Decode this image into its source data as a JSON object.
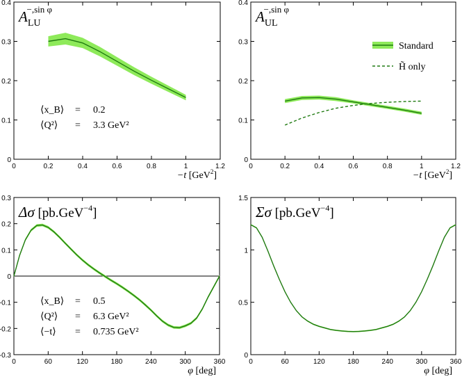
{
  "colors": {
    "band": "#8eea5a",
    "line": "#1f7a10",
    "axis": "#000000"
  },
  "chart_data": [
    {
      "type": "line",
      "panel": "top-left",
      "title": "A_LU^{-, sin φ}",
      "title_main": "A",
      "title_sub": "LU",
      "title_sup": "−,sin φ",
      "xlabel": "−t   [GeV²]",
      "xlabel_var": "−t",
      "xlabel_unit": "[GeV",
      "xlabel_unit_sup": "2",
      "xlim": [
        0,
        1.2
      ],
      "ylim": [
        0,
        0.4
      ],
      "xticks": [
        "0",
        "0.2",
        "0.4",
        "0.6",
        "0.8",
        "1",
        "1.2"
      ],
      "yticks": [
        "0",
        "0.1",
        "0.2",
        "0.3",
        "0.4"
      ],
      "series": [
        {
          "style": "solid-band",
          "x": [
            0.2,
            0.3,
            0.4,
            0.5,
            0.6,
            0.7,
            0.8,
            0.9,
            1.0
          ],
          "values": [
            0.3,
            0.307,
            0.296,
            0.274,
            0.249,
            0.224,
            0.201,
            0.179,
            0.157
          ],
          "band_halfwidth": [
            0.013,
            0.015,
            0.013,
            0.012,
            0.011,
            0.01,
            0.009,
            0.008,
            0.007
          ]
        }
      ],
      "annotations": [
        {
          "label": "⟨x_B⟩",
          "eq": "=",
          "value": "0.2"
        },
        {
          "label": "⟨Q²⟩",
          "eq": "=",
          "value": "3.3 GeV²"
        }
      ]
    },
    {
      "type": "line",
      "panel": "top-right",
      "title_main": "A",
      "title_sub": "UL",
      "title_sup": "−,sin φ",
      "xlabel_var": "−t",
      "xlabel_unit": "[GeV",
      "xlabel_unit_sup": "2",
      "xlim": [
        0,
        1.2
      ],
      "ylim": [
        0,
        0.4
      ],
      "xticks": [
        "0",
        "0.2",
        "0.4",
        "0.6",
        "0.8",
        "1",
        "1.2"
      ],
      "yticks": [
        "0",
        "0.1",
        "0.2",
        "0.3",
        "0.4"
      ],
      "legend": {
        "placement": "top-right",
        "entries": [
          "Standard",
          "H̃ only"
        ]
      },
      "series": [
        {
          "name": "Standard",
          "style": "solid-band",
          "x": [
            0.2,
            0.3,
            0.4,
            0.5,
            0.6,
            0.7,
            0.8,
            0.9,
            1.0
          ],
          "values": [
            0.148,
            0.156,
            0.157,
            0.153,
            0.146,
            0.139,
            0.132,
            0.125,
            0.117
          ],
          "band_halfwidth": [
            0.005,
            0.005,
            0.005,
            0.005,
            0.004,
            0.004,
            0.004,
            0.004,
            0.004
          ]
        },
        {
          "name": "H̃ only",
          "style": "dashed",
          "x": [
            0.2,
            0.3,
            0.4,
            0.5,
            0.6,
            0.7,
            0.8,
            0.9,
            1.0
          ],
          "values": [
            0.087,
            0.105,
            0.119,
            0.13,
            0.137,
            0.142,
            0.145,
            0.147,
            0.148
          ]
        }
      ]
    },
    {
      "type": "line",
      "panel": "bottom-left",
      "title_main": "Δσ",
      "title_unit": "[pb.GeV",
      "title_unit_sup": "−4",
      "xlabel_var": "φ",
      "xlabel_unit": "[deg]",
      "xlim": [
        0,
        360
      ],
      "ylim": [
        -0.3,
        0.3
      ],
      "xticks": [
        "0",
        "60",
        "120",
        "180",
        "240",
        "300",
        "360"
      ],
      "yticks": [
        "-0.3",
        "-0.2",
        "-0.1",
        "0",
        "0.1",
        "0.2",
        "0.3"
      ],
      "zero_line": true,
      "series": [
        {
          "style": "solid-band",
          "x": [
            0,
            10,
            20,
            30,
            40,
            50,
            60,
            70,
            80,
            90,
            100,
            110,
            120,
            130,
            140,
            150,
            160,
            170,
            180,
            190,
            200,
            210,
            220,
            230,
            240,
            250,
            260,
            270,
            280,
            290,
            300,
            310,
            320,
            330,
            340,
            350,
            360
          ],
          "values": [
            0,
            0.079,
            0.138,
            0.175,
            0.193,
            0.195,
            0.186,
            0.169,
            0.148,
            0.125,
            0.103,
            0.081,
            0.061,
            0.043,
            0.027,
            0.012,
            -0.002,
            -0.016,
            -0.029,
            -0.043,
            -0.058,
            -0.074,
            -0.091,
            -0.11,
            -0.13,
            -0.152,
            -0.172,
            -0.187,
            -0.196,
            -0.197,
            -0.19,
            -0.18,
            -0.16,
            -0.125,
            -0.08,
            -0.04,
            0
          ],
          "band_halfwidth": 0.005
        }
      ],
      "annotations": [
        {
          "label": "⟨x_B⟩",
          "eq": "=",
          "value": "0.5"
        },
        {
          "label": "⟨Q²⟩",
          "eq": "=",
          "value": "6.3 GeV²"
        },
        {
          "label": "⟨−t⟩",
          "eq": "=",
          "value": "0.735 GeV²"
        }
      ]
    },
    {
      "type": "line",
      "panel": "bottom-right",
      "title_main": "Σσ",
      "title_unit": "[pb.GeV",
      "title_unit_sup": "−4",
      "xlabel_var": "φ",
      "xlabel_unit": "[deg]",
      "xlim": [
        0,
        360
      ],
      "ylim": [
        0,
        1.5
      ],
      "xticks": [
        "0",
        "60",
        "120",
        "180",
        "240",
        "300",
        "360"
      ],
      "yticks": [
        "0",
        "0.5",
        "1",
        "1.5"
      ],
      "series": [
        {
          "style": "solid-band",
          "x": [
            0,
            10,
            20,
            30,
            40,
            50,
            60,
            70,
            80,
            90,
            100,
            110,
            120,
            130,
            140,
            150,
            160,
            170,
            180,
            190,
            200,
            210,
            220,
            230,
            240,
            250,
            260,
            270,
            280,
            290,
            300,
            310,
            320,
            330,
            340,
            350,
            360
          ],
          "values": [
            1.24,
            1.21,
            1.12,
            0.99,
            0.85,
            0.72,
            0.6,
            0.5,
            0.42,
            0.36,
            0.32,
            0.29,
            0.27,
            0.255,
            0.24,
            0.232,
            0.226,
            0.222,
            0.22,
            0.222,
            0.226,
            0.232,
            0.24,
            0.255,
            0.27,
            0.29,
            0.32,
            0.36,
            0.42,
            0.5,
            0.6,
            0.72,
            0.85,
            0.99,
            1.12,
            1.21,
            1.24
          ],
          "band_halfwidth": 0.006
        }
      ]
    }
  ]
}
